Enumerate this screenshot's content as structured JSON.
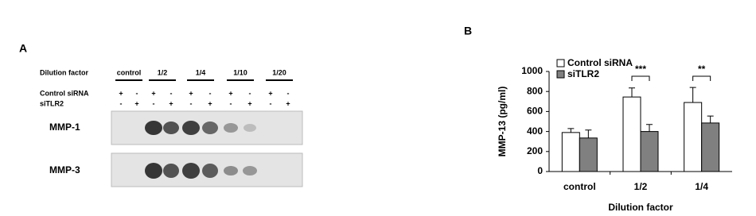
{
  "panel_a": {
    "label": "A",
    "header": "Dilution factor",
    "groups": [
      "control",
      "1/2",
      "1/4",
      "1/10",
      "1/20"
    ],
    "rows": [
      {
        "label": "Control siRNA",
        "signs": [
          "+",
          "-",
          "+",
          "-",
          "+",
          "-",
          "+",
          "-",
          "+",
          "-"
        ]
      },
      {
        "label": "siTLR2",
        "signs": [
          "-",
          "+",
          "-",
          "+",
          "-",
          "+",
          "-",
          "+",
          "-",
          "+"
        ]
      }
    ],
    "blots": [
      "MMP-1",
      "MMP-3"
    ]
  },
  "chart_data": {
    "type": "bar",
    "panel_label": "B",
    "x_label": "Dilution factor",
    "y_label": "MMP-13 (pg/ml)",
    "categories": [
      "control",
      "1/2",
      "1/4"
    ],
    "series": [
      {
        "name": "Control siRNA",
        "color": "#ffffff",
        "values": [
          390,
          745,
          690
        ],
        "errors": [
          40,
          90,
          150
        ]
      },
      {
        "name": "siTLR2",
        "color": "#808080",
        "values": [
          335,
          400,
          485
        ],
        "errors": [
          80,
          70,
          70
        ]
      }
    ],
    "significance": [
      null,
      "***",
      "**"
    ],
    "ylim": [
      0,
      1000
    ],
    "yticks": [
      0,
      200,
      400,
      600,
      800,
      1000
    ],
    "legend": "upper left",
    "grid": false
  }
}
